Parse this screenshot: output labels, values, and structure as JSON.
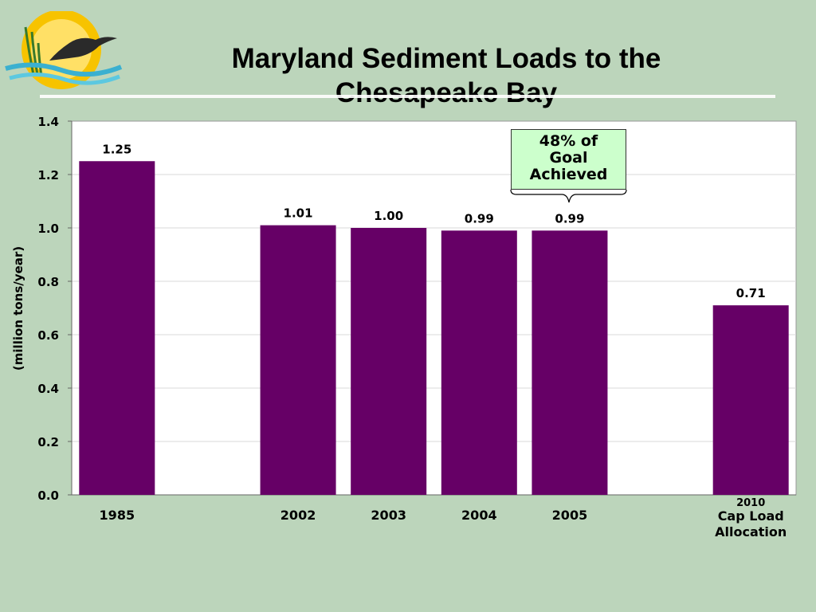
{
  "title_line1": "Maryland Sediment Loads to the",
  "title_line2": "Chesapeake Bay",
  "callout": {
    "line1": "48% of",
    "line2": "Goal",
    "line3": "Achieved"
  },
  "colors": {
    "background": "#bcd5bb",
    "bar": "#660066",
    "plot_area": "#ffffff",
    "callout_fill": "#ccffcc"
  },
  "chart_data": {
    "type": "bar",
    "title": "Maryland Sediment Loads to the Chesapeake Bay",
    "ylabel": "(million tons/year)",
    "xlabel": "",
    "ylim": [
      0,
      1.4
    ],
    "yticks": [
      "0.0",
      "0.2",
      "0.4",
      "0.6",
      "0.8",
      "1.0",
      "1.2",
      "1.4"
    ],
    "grid": true,
    "categories": [
      [
        "1985"
      ],
      [
        ""
      ],
      [
        "2002"
      ],
      [
        "2003"
      ],
      [
        "2004"
      ],
      [
        "2005"
      ],
      [
        ""
      ],
      [
        "2010",
        "Cap Load",
        "Allocation"
      ]
    ],
    "values": [
      1.25,
      null,
      1.01,
      1.0,
      0.99,
      0.99,
      null,
      0.71
    ],
    "data_labels": [
      "1.25",
      "",
      "1.01",
      "1.00",
      "0.99",
      "0.99",
      "",
      "0.71"
    ]
  }
}
